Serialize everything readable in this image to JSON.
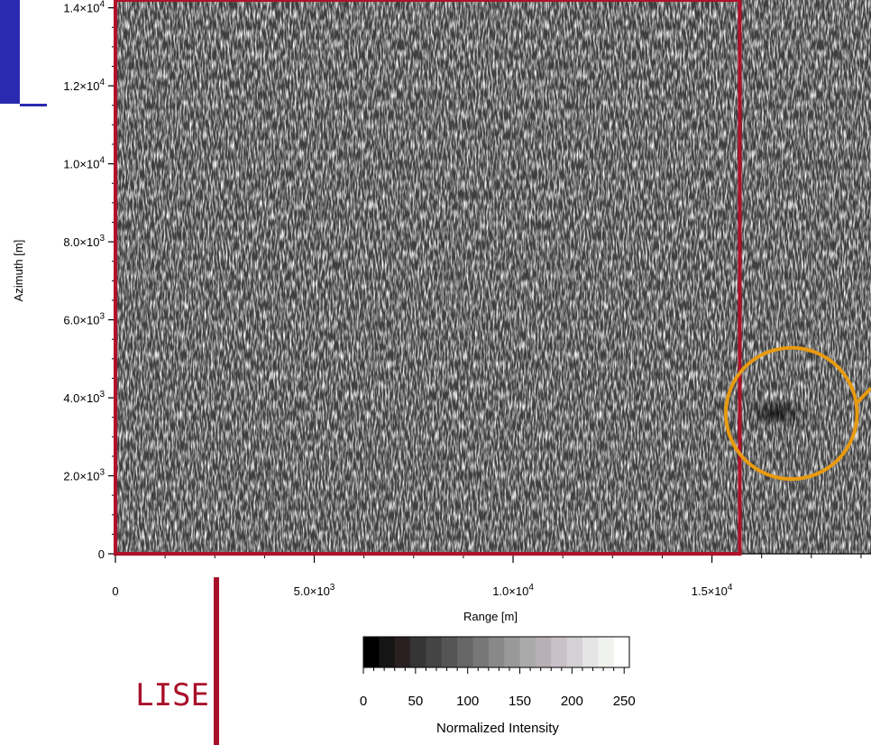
{
  "chart_data": {
    "type": "heatmap",
    "title": "",
    "xlabel": "Range [m]",
    "ylabel": "Azimuth [m]",
    "xlim": [
      0,
      19000
    ],
    "ylim": [
      0,
      14200
    ],
    "x_ticks": [
      {
        "value": 0,
        "label": "0"
      },
      {
        "value": 5000,
        "label": "5.0×10",
        "exp": "3"
      },
      {
        "value": 10000,
        "label": "1.0×10",
        "exp": "4"
      },
      {
        "value": 15000,
        "label": "1.5×10",
        "exp": "4"
      }
    ],
    "y_ticks": [
      {
        "value": 0,
        "label": "0"
      },
      {
        "value": 2000,
        "label": "2.0×10",
        "exp": "3"
      },
      {
        "value": 4000,
        "label": "4.0×10",
        "exp": "3"
      },
      {
        "value": 6000,
        "label": "6.0×10",
        "exp": "3"
      },
      {
        "value": 8000,
        "label": "8.0×10",
        "exp": "3"
      },
      {
        "value": 10000,
        "label": "1.0×10",
        "exp": "4"
      },
      {
        "value": 12000,
        "label": "1.2×10",
        "exp": "4"
      },
      {
        "value": 14000,
        "label": "1.4×10",
        "exp": "4"
      }
    ],
    "colorbar": {
      "label": "Normalized Intensity",
      "range": [
        0,
        255
      ],
      "ticks": [
        0,
        50,
        100,
        150,
        200,
        250
      ],
      "colors": [
        "#000000",
        "#151515",
        "#2a2020",
        "#353535",
        "#444444",
        "#555555",
        "#666666",
        "#777777",
        "#888888",
        "#999999",
        "#aaaaaa",
        "#b8b0b4",
        "#c8c2c8",
        "#d4d0d4",
        "#e4e4e4",
        "#f0f2ee",
        "#ffffff"
      ]
    },
    "region_box": {
      "x0": 0,
      "x1": 15700,
      "y0": 0,
      "y1": 14200,
      "color": "#b0102a"
    },
    "highlight_circle": {
      "cx": 17000,
      "cy": 3600,
      "r_x": 1650,
      "color": "#e89a10"
    }
  },
  "logo": {
    "text": "LISE",
    "color": "#a8102a"
  },
  "accent": {
    "blue": "#2a2ab0",
    "red": "#b0102a"
  }
}
